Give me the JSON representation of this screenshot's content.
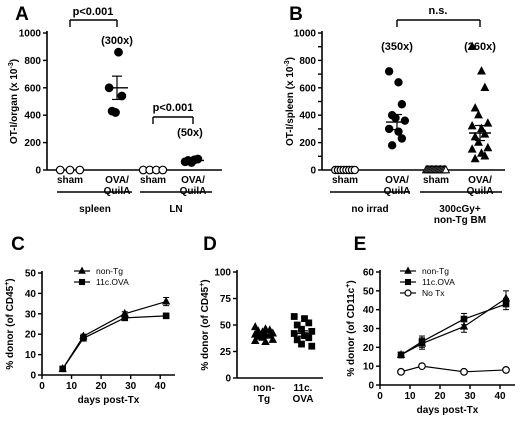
{
  "figure": {
    "panels": [
      "A",
      "B",
      "C",
      "D",
      "E"
    ]
  },
  "chart_data": [
    {
      "panel": "A",
      "type": "scatter",
      "ylabel": "OT-I/organ (x 10",
      "ylabel_sup": "-3",
      "ylabel_end": ")",
      "ylim": [
        0,
        1000
      ],
      "yticks": [
        0,
        200,
        400,
        600,
        800,
        1000
      ],
      "categories": [
        "sham",
        "OVA/\nQuilA",
        "sham",
        "OVA/\nQuilA"
      ],
      "category_labels": [
        [
          "sham"
        ],
        [
          "OVA/",
          "QuilA"
        ],
        [
          "sham"
        ],
        [
          "OVA/",
          "QuilA"
        ]
      ],
      "groups": [
        "spleen",
        "LN"
      ],
      "fold_changes": [
        "(300x)",
        "(50x)"
      ],
      "pvalues": [
        "p<0.001",
        "p<0.001"
      ],
      "points": [
        [
          0,
          0,
          0
        ],
        [
          600,
          860,
          540,
          430,
          420
        ],
        [
          0,
          0,
          0,
          0
        ],
        [
          60,
          75,
          80,
          70,
          55
        ]
      ],
      "means": [
        0,
        600,
        0,
        70
      ],
      "sems": [
        0,
        85,
        0,
        7
      ]
    },
    {
      "panel": "B",
      "type": "scatter",
      "ylabel": "OT-I/spleen (x 10",
      "ylabel_sup": "-3",
      "ylabel_end": ")",
      "ylim": [
        0,
        1000
      ],
      "yticks": [
        0,
        100,
        200,
        300,
        400,
        500,
        600,
        700,
        800,
        900,
        1000
      ],
      "category_labels": [
        [
          "sham"
        ],
        [
          "OVA/",
          "QuilA"
        ],
        [
          "sham"
        ],
        [
          "OVA/",
          "QuilA"
        ]
      ],
      "groups": [
        "no irrad",
        "300cGy+\nnon-Tg BM"
      ],
      "group_labels": [
        [
          "no irrad"
        ],
        [
          "300cGy+",
          "non-Tg BM"
        ]
      ],
      "fold_changes": [
        "(350x)",
        "(260x)"
      ],
      "significance": "n.s.",
      "points": [
        [
          0,
          0,
          0,
          0,
          0,
          0,
          0,
          0
        ],
        [
          720,
          640,
          480,
          400,
          380,
          360,
          300,
          280,
          230,
          180
        ],
        [
          0,
          0,
          0,
          0,
          0,
          0,
          0,
          0,
          0,
          0,
          0,
          0,
          0,
          0,
          0,
          0
        ],
        [
          900,
          720,
          600,
          450,
          400,
          340,
          320,
          300,
          260,
          240,
          200,
          160,
          150,
          120,
          100,
          80
        ]
      ],
      "means": [
        0,
        350,
        0,
        270
      ],
      "sems": [
        0,
        55,
        0,
        55
      ]
    },
    {
      "panel": "C",
      "type": "line",
      "xlabel": "days post-Tx",
      "ylabel": "% donor (of CD45",
      "ylabel_sup": "+",
      "ylabel_end": ")",
      "xlim": [
        0,
        45
      ],
      "xticks": [
        0,
        10,
        20,
        30,
        40
      ],
      "ylim": [
        0,
        50
      ],
      "yticks": [
        0,
        10,
        20,
        30,
        40,
        50
      ],
      "x": [
        7,
        14,
        28,
        42
      ],
      "series": [
        {
          "name": "non-Tg",
          "marker": "triangle",
          "values": [
            3,
            19,
            30,
            36
          ],
          "err": [
            0.5,
            1,
            1,
            2
          ]
        },
        {
          "name": "11c.OVA",
          "marker": "square",
          "values": [
            3,
            18,
            28,
            29
          ],
          "err": [
            0.5,
            1,
            1,
            1
          ]
        }
      ]
    },
    {
      "panel": "D",
      "type": "scatter",
      "ylabel": "% donor (of CD45",
      "ylabel_sup": "+",
      "ylabel_end": ")",
      "ylim": [
        0,
        100
      ],
      "yticks": [
        0,
        25,
        50,
        75,
        100
      ],
      "category_labels": [
        [
          "non-",
          "Tg"
        ],
        [
          "11c.",
          "OVA"
        ]
      ],
      "points": [
        [
          48,
          46,
          45,
          44,
          43,
          42,
          41,
          40,
          40,
          39,
          38,
          36,
          35,
          34
        ],
        [
          58,
          56,
          52,
          50,
          46,
          44,
          42,
          40,
          38,
          36,
          32,
          30
        ]
      ],
      "means": [
        41,
        42
      ],
      "sems": [
        1.5,
        2.5
      ]
    },
    {
      "panel": "E",
      "type": "line",
      "xlabel": "days post-Tx",
      "ylabel": "% donor (of CD11c",
      "ylabel_sup": "+",
      "ylabel_end": ")",
      "xlim": [
        0,
        45
      ],
      "xticks": [
        0,
        10,
        20,
        30,
        40
      ],
      "ylim": [
        0,
        60
      ],
      "yticks": [
        0,
        10,
        20,
        30,
        40,
        50,
        60
      ],
      "x": [
        7,
        14,
        28,
        42
      ],
      "series": [
        {
          "name": "non-Tg",
          "marker": "triangle",
          "values": [
            16,
            22,
            31,
            46
          ],
          "err": [
            1.5,
            3,
            3,
            4
          ]
        },
        {
          "name": "11c.OVA",
          "marker": "square",
          "values": [
            16,
            23,
            35,
            43
          ],
          "err": [
            1.5,
            3,
            3,
            3
          ]
        },
        {
          "name": "No Tx",
          "marker": "circle",
          "values": [
            7,
            10,
            7,
            8
          ],
          "err": [
            0.5,
            1,
            0.5,
            0.5
          ]
        }
      ]
    }
  ]
}
